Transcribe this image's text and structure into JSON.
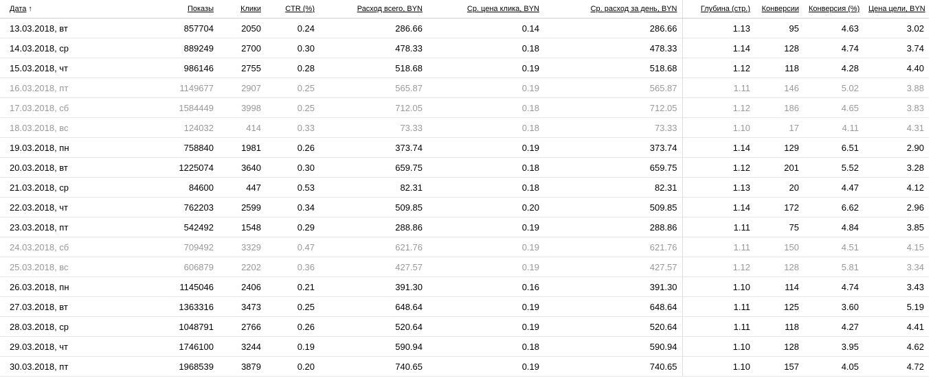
{
  "table": {
    "columns": [
      "Дата",
      "Показы",
      "Клики",
      "CTR (%)",
      "Расход всего, BYN",
      "Ср. цена клика, BYN",
      "Ср. расход за день, BYN",
      "Глубина (стр.)",
      "Конверсии",
      "Конверсия (%)",
      "Цена цели, BYN"
    ],
    "sort_indicator": "↑",
    "rows": [
      {
        "color": "#000000",
        "cells": [
          "13.03.2018, вт",
          "857704",
          "2050",
          "0.24",
          "286.66",
          "0.14",
          "286.66",
          "1.13",
          "95",
          "4.63",
          "3.02"
        ]
      },
      {
        "color": "#000000",
        "cells": [
          "14.03.2018, ср",
          "889249",
          "2700",
          "0.30",
          "478.33",
          "0.18",
          "478.33",
          "1.14",
          "128",
          "4.74",
          "3.74"
        ]
      },
      {
        "color": "#000000",
        "cells": [
          "15.03.2018, чт",
          "986146",
          "2755",
          "0.28",
          "518.68",
          "0.19",
          "518.68",
          "1.12",
          "118",
          "4.28",
          "4.40"
        ]
      },
      {
        "color": "#999999",
        "cells": [
          "16.03.2018, пт",
          "1149677",
          "2907",
          "0.25",
          "565.87",
          "0.19",
          "565.87",
          "1.11",
          "146",
          "5.02",
          "3.88"
        ]
      },
      {
        "color": "#999999",
        "cells": [
          "17.03.2018, сб",
          "1584449",
          "3998",
          "0.25",
          "712.05",
          "0.18",
          "712.05",
          "1.12",
          "186",
          "4.65",
          "3.83"
        ]
      },
      {
        "color": "#999999",
        "cells": [
          "18.03.2018, вс",
          "124032",
          "414",
          "0.33",
          "73.33",
          "0.18",
          "73.33",
          "1.10",
          "17",
          "4.11",
          "4.31"
        ]
      },
      {
        "color": "#000000",
        "cells": [
          "19.03.2018, пн",
          "758840",
          "1981",
          "0.26",
          "373.74",
          "0.19",
          "373.74",
          "1.14",
          "129",
          "6.51",
          "2.90"
        ]
      },
      {
        "color": "#000000",
        "cells": [
          "20.03.2018, вт",
          "1225074",
          "3640",
          "0.30",
          "659.75",
          "0.18",
          "659.75",
          "1.12",
          "201",
          "5.52",
          "3.28"
        ]
      },
      {
        "color": "#000000",
        "cells": [
          "21.03.2018, ср",
          "84600",
          "447",
          "0.53",
          "82.31",
          "0.18",
          "82.31",
          "1.13",
          "20",
          "4.47",
          "4.12"
        ]
      },
      {
        "color": "#000000",
        "cells": [
          "22.03.2018, чт",
          "762203",
          "2599",
          "0.34",
          "509.85",
          "0.20",
          "509.85",
          "1.14",
          "172",
          "6.62",
          "2.96"
        ]
      },
      {
        "color": "#000000",
        "cells": [
          "23.03.2018, пт",
          "542492",
          "1548",
          "0.29",
          "288.86",
          "0.19",
          "288.86",
          "1.11",
          "75",
          "4.84",
          "3.85"
        ]
      },
      {
        "color": "#999999",
        "cells": [
          "24.03.2018, сб",
          "709492",
          "3329",
          "0.47",
          "621.76",
          "0.19",
          "621.76",
          "1.11",
          "150",
          "4.51",
          "4.15"
        ]
      },
      {
        "color": "#999999",
        "cells": [
          "25.03.2018, вс",
          "606879",
          "2202",
          "0.36",
          "427.57",
          "0.19",
          "427.57",
          "1.12",
          "128",
          "5.81",
          "3.34"
        ]
      },
      {
        "color": "#000000",
        "cells": [
          "26.03.2018, пн",
          "1145046",
          "2406",
          "0.21",
          "391.30",
          "0.16",
          "391.30",
          "1.10",
          "114",
          "4.74",
          "3.43"
        ]
      },
      {
        "color": "#000000",
        "cells": [
          "27.03.2018, вт",
          "1363316",
          "3473",
          "0.25",
          "648.64",
          "0.19",
          "648.64",
          "1.11",
          "125",
          "3.60",
          "5.19"
        ]
      },
      {
        "color": "#000000",
        "cells": [
          "28.03.2018, ср",
          "1048791",
          "2766",
          "0.26",
          "520.64",
          "0.19",
          "520.64",
          "1.11",
          "118",
          "4.27",
          "4.41"
        ]
      },
      {
        "color": "#000000",
        "cells": [
          "29.03.2018, чт",
          "1746100",
          "3244",
          "0.19",
          "590.94",
          "0.18",
          "590.94",
          "1.10",
          "128",
          "3.95",
          "4.62"
        ]
      },
      {
        "color": "#000000",
        "cells": [
          "30.03.2018, пт",
          "1968539",
          "3879",
          "0.20",
          "740.65",
          "0.19",
          "740.65",
          "1.10",
          "157",
          "4.05",
          "4.72"
        ]
      }
    ]
  }
}
